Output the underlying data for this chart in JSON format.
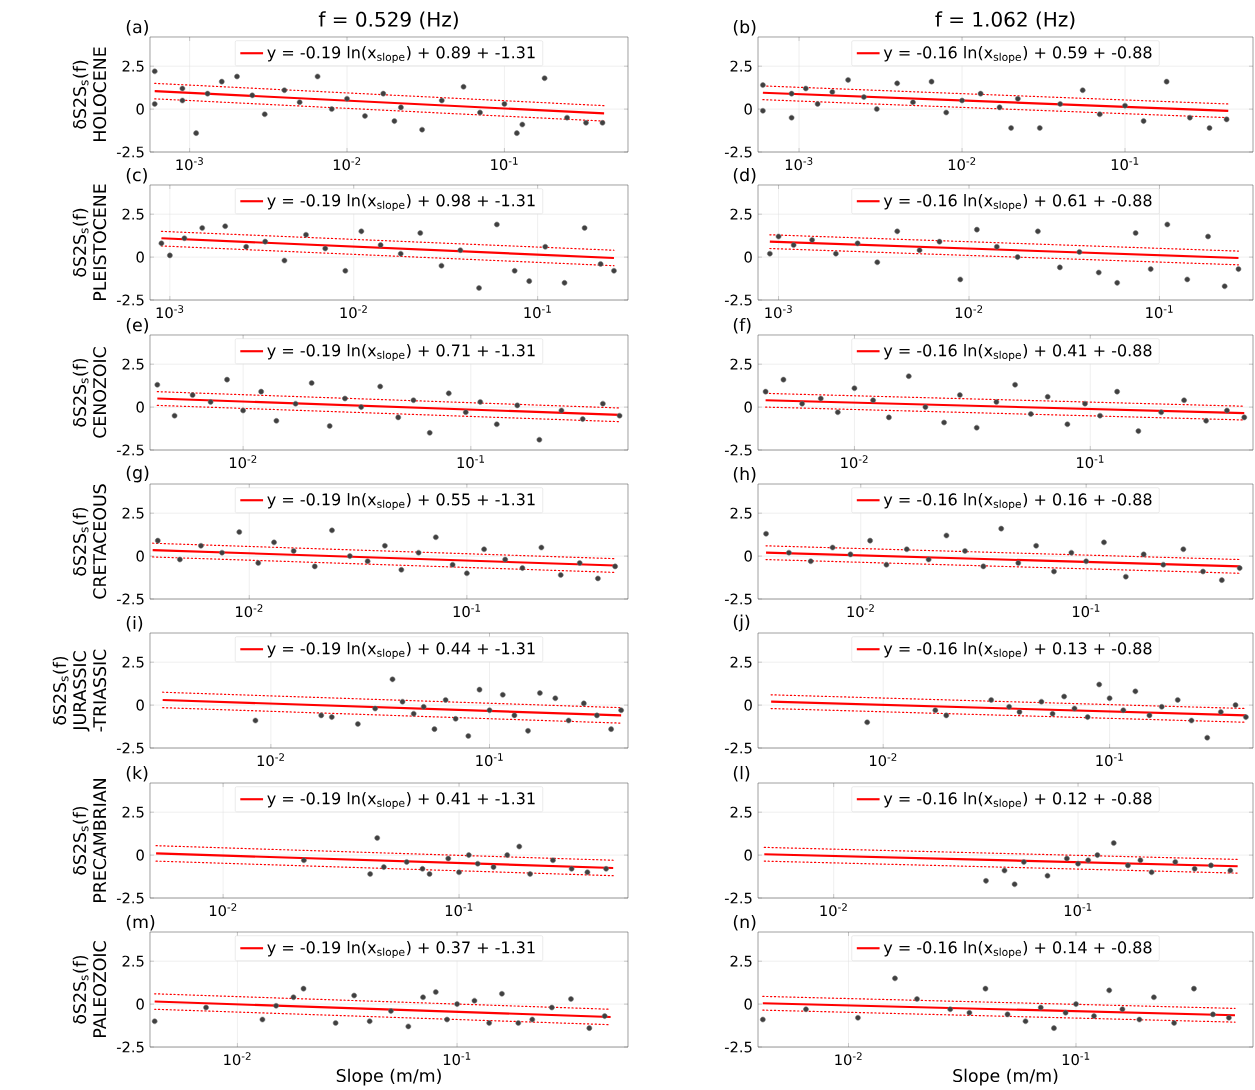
{
  "chart_data": [
    {
      "type": "scatter",
      "title": "f = 0.529 (Hz)",
      "annotations": [
        "(a)"
      ],
      "ylabel": "δS2S$_{s}$(f) HOLOCENE",
      "log": "x",
      "grid": true,
      "legend": "top",
      "xlim": [
        0.00056,
        0.61
      ],
      "ylim": [
        -2.5,
        4.2
      ],
      "xticks": [
        {
          "value": 0.001,
          "label": "10$^{-3}$"
        },
        {
          "value": 0.01,
          "label": "10$^{-2}$"
        },
        {
          "value": 0.1,
          "label": "10$^{-1}$"
        }
      ],
      "yticks": [
        -2.5,
        0,
        2.5
      ],
      "series": [
        {
          "color": "#404040",
          "marker": "circle",
          "x": [
            0.0006,
            0.0006,
            0.0009,
            0.0009,
            0.0011,
            0.0013,
            0.0016,
            0.002,
            0.0025,
            0.003,
            0.004,
            0.005,
            0.0065,
            0.008,
            0.01,
            0.013,
            0.017,
            0.02,
            0.022,
            0.03,
            0.04,
            0.055,
            0.07,
            0.1,
            0.12,
            0.13,
            0.18,
            0.25,
            0.33,
            0.42
          ],
          "values": [
            2.2,
            0.3,
            1.2,
            0.5,
            -1.4,
            0.9,
            1.6,
            1.9,
            0.8,
            -0.3,
            1.1,
            0.4,
            1.9,
            0.0,
            0.6,
            -0.4,
            0.9,
            -0.7,
            0.1,
            -1.2,
            0.5,
            1.3,
            -0.2,
            0.3,
            -1.4,
            -0.9,
            1.8,
            -0.5,
            -0.8,
            -0.8
          ]
        },
        {
          "type": "line",
          "name": "y = -0.19 ln(x$_{slope}$) + 0.89 + -1.31",
          "color": "#ff0000",
          "line_style": "solid",
          "x": [
            0.0006,
            0.43
          ],
          "values": [
            1.05,
            -0.25
          ]
        },
        {
          "type": "line",
          "color": "#ff0000",
          "line_style": "dotted",
          "x": [
            0.0006,
            0.43
          ],
          "values": [
            1.5,
            0.2
          ]
        },
        {
          "type": "line",
          "color": "#ff0000",
          "line_style": "dotted",
          "x": [
            0.0006,
            0.43
          ],
          "values": [
            0.6,
            -0.7
          ]
        }
      ]
    },
    {
      "type": "scatter",
      "title": "f = 1.062 (Hz)",
      "annotations": [
        "(b)"
      ],
      "log": "x",
      "grid": true,
      "legend": "top",
      "xlim": [
        0.00056,
        0.61
      ],
      "ylim": [
        -2.5,
        4.2
      ],
      "xticks": [
        {
          "value": 0.001,
          "label": "10$^{-3}$"
        },
        {
          "value": 0.01,
          "label": "10$^{-2}$"
        },
        {
          "value": 0.1,
          "label": "10$^{-1}$"
        }
      ],
      "yticks": [
        -2.5,
        0,
        2.5
      ],
      "series": [
        {
          "color": "#404040",
          "marker": "circle",
          "x": [
            0.0006,
            0.0006,
            0.0009,
            0.0009,
            0.0011,
            0.0013,
            0.0016,
            0.002,
            0.0025,
            0.003,
            0.004,
            0.005,
            0.0065,
            0.008,
            0.01,
            0.013,
            0.017,
            0.02,
            0.022,
            0.03,
            0.04,
            0.055,
            0.07,
            0.1,
            0.13,
            0.18,
            0.25,
            0.33,
            0.42
          ],
          "values": [
            1.4,
            -0.1,
            0.9,
            -0.5,
            1.2,
            0.3,
            1.0,
            1.7,
            0.7,
            0.0,
            1.5,
            0.4,
            1.6,
            -0.2,
            0.5,
            0.9,
            0.1,
            -1.1,
            0.6,
            -1.1,
            0.3,
            1.1,
            -0.3,
            0.2,
            -0.7,
            1.6,
            -0.5,
            -1.1,
            -0.6
          ]
        },
        {
          "type": "line",
          "name": "y = -0.16 ln(x$_{slope}$) + 0.59 + -0.88",
          "color": "#ff0000",
          "line_style": "solid",
          "x": [
            0.0006,
            0.43
          ],
          "values": [
            0.95,
            -0.1
          ]
        },
        {
          "type": "line",
          "color": "#ff0000",
          "line_style": "dotted",
          "x": [
            0.0006,
            0.43
          ],
          "values": [
            1.35,
            0.3
          ]
        },
        {
          "type": "line",
          "color": "#ff0000",
          "line_style": "dotted",
          "x": [
            0.0006,
            0.43
          ],
          "values": [
            0.55,
            -0.5
          ]
        }
      ]
    },
    {
      "type": "scatter",
      "annotations": [
        "(c)"
      ],
      "ylabel": "δS2S$_{s}$(f) PLEISTOCENE",
      "log": "x",
      "grid": true,
      "legend": "top",
      "xlim": [
        0.00078,
        0.31
      ],
      "ylim": [
        -2.5,
        4.2
      ],
      "xticks": [
        {
          "value": 0.001,
          "label": "10$^{-3}$"
        },
        {
          "value": 0.01,
          "label": "10$^{-2}$"
        },
        {
          "value": 0.1,
          "label": "10$^{-1}$"
        }
      ],
      "yticks": [
        -2.5,
        0,
        2.5
      ],
      "series": [
        {
          "color": "#404040",
          "marker": "circle",
          "x": [
            0.0009,
            0.001,
            0.0012,
            0.0015,
            0.002,
            0.0026,
            0.0033,
            0.0042,
            0.0055,
            0.007,
            0.009,
            0.011,
            0.014,
            0.018,
            0.023,
            0.03,
            0.038,
            0.048,
            0.06,
            0.075,
            0.09,
            0.11,
            0.14,
            0.18,
            0.22,
            0.26
          ],
          "values": [
            0.8,
            0.1,
            1.1,
            1.7,
            1.8,
            0.6,
            0.9,
            -0.2,
            1.3,
            0.5,
            -0.8,
            1.5,
            0.7,
            0.2,
            1.4,
            -0.5,
            0.4,
            -1.8,
            1.9,
            -0.8,
            -1.4,
            0.6,
            -1.5,
            1.7,
            -0.4,
            -0.8
          ]
        },
        {
          "type": "line",
          "name": "y = -0.19 ln(x$_{slope}$) + 0.98 + -1.31",
          "color": "#ff0000",
          "line_style": "solid",
          "x": [
            0.0009,
            0.26
          ],
          "values": [
            1.1,
            -0.05
          ]
        },
        {
          "type": "line",
          "color": "#ff0000",
          "line_style": "dotted",
          "x": [
            0.0009,
            0.26
          ],
          "values": [
            1.5,
            0.4
          ]
        },
        {
          "type": "line",
          "color": "#ff0000",
          "line_style": "dotted",
          "x": [
            0.0009,
            0.26
          ],
          "values": [
            0.65,
            -0.5
          ]
        }
      ]
    },
    {
      "type": "scatter",
      "annotations": [
        "(d)"
      ],
      "log": "x",
      "grid": true,
      "legend": "top",
      "xlim": [
        0.00078,
        0.31
      ],
      "ylim": [
        -2.5,
        4.2
      ],
      "xticks": [
        {
          "value": 0.001,
          "label": "10$^{-3}$"
        },
        {
          "value": 0.01,
          "label": "10$^{-2}$"
        },
        {
          "value": 0.1,
          "label": "10$^{-1}$"
        }
      ],
      "yticks": [
        -2.5,
        0,
        2.5
      ],
      "series": [
        {
          "color": "#404040",
          "marker": "circle",
          "x": [
            0.0009,
            0.001,
            0.0012,
            0.0015,
            0.002,
            0.0026,
            0.0033,
            0.0042,
            0.0055,
            0.007,
            0.009,
            0.011,
            0.014,
            0.018,
            0.023,
            0.03,
            0.038,
            0.048,
            0.06,
            0.075,
            0.09,
            0.11,
            0.14,
            0.18,
            0.22,
            0.26
          ],
          "values": [
            0.2,
            1.2,
            0.7,
            1.0,
            0.2,
            0.8,
            -0.3,
            1.5,
            0.4,
            0.9,
            -1.3,
            1.6,
            0.6,
            0.0,
            1.5,
            -0.6,
            0.3,
            -0.9,
            -1.5,
            1.4,
            -0.7,
            1.9,
            -1.3,
            1.2,
            -1.7,
            -0.7
          ]
        },
        {
          "type": "line",
          "name": "y = -0.16 ln(x$_{slope}$) + 0.61 + -0.88",
          "color": "#ff0000",
          "line_style": "solid",
          "x": [
            0.0009,
            0.26
          ],
          "values": [
            0.9,
            -0.05
          ]
        },
        {
          "type": "line",
          "color": "#ff0000",
          "line_style": "dotted",
          "x": [
            0.0009,
            0.26
          ],
          "values": [
            1.3,
            0.35
          ]
        },
        {
          "type": "line",
          "color": "#ff0000",
          "line_style": "dotted",
          "x": [
            0.0009,
            0.26
          ],
          "values": [
            0.5,
            -0.45
          ]
        }
      ]
    },
    {
      "type": "scatter",
      "annotations": [
        "(e)"
      ],
      "ylabel": "δS2S$_{s}$(f) CENOZOIC",
      "log": "x",
      "grid": true,
      "legend": "top",
      "xlim": [
        0.0039,
        0.49
      ],
      "ylim": [
        -2.5,
        4.2
      ],
      "xticks": [
        {
          "value": 0.01,
          "label": "10$^{-2}$"
        },
        {
          "value": 0.1,
          "label": "10$^{-1}$"
        }
      ],
      "yticks": [
        -2.5,
        0,
        2.5
      ],
      "series": [
        {
          "color": "#404040",
          "marker": "circle",
          "x": [
            0.0042,
            0.005,
            0.006,
            0.0072,
            0.0085,
            0.01,
            0.012,
            0.014,
            0.017,
            0.02,
            0.024,
            0.028,
            0.033,
            0.04,
            0.048,
            0.056,
            0.066,
            0.08,
            0.095,
            0.11,
            0.13,
            0.16,
            0.2,
            0.25,
            0.31,
            0.38,
            0.45
          ],
          "values": [
            1.3,
            -0.5,
            0.7,
            0.3,
            1.6,
            -0.2,
            0.9,
            -0.8,
            0.2,
            1.4,
            -1.1,
            0.5,
            0.0,
            1.2,
            -0.6,
            0.4,
            -1.5,
            0.8,
            -0.3,
            0.3,
            -1.0,
            0.1,
            -1.9,
            -0.2,
            -0.7,
            0.2,
            -0.5
          ]
        },
        {
          "type": "line",
          "name": "y = -0.19 ln(x$_{slope}$) + 0.71 + -1.31",
          "color": "#ff0000",
          "line_style": "solid",
          "x": [
            0.0042,
            0.45
          ],
          "values": [
            0.5,
            -0.45
          ]
        },
        {
          "type": "line",
          "color": "#ff0000",
          "line_style": "dotted",
          "x": [
            0.0042,
            0.45
          ],
          "values": [
            0.9,
            -0.05
          ]
        },
        {
          "type": "line",
          "color": "#ff0000",
          "line_style": "dotted",
          "x": [
            0.0042,
            0.45
          ],
          "values": [
            0.1,
            -0.85
          ]
        }
      ]
    },
    {
      "type": "scatter",
      "annotations": [
        "(f)"
      ],
      "log": "x",
      "grid": true,
      "legend": "top",
      "xlim": [
        0.0039,
        0.49
      ],
      "ylim": [
        -2.5,
        4.2
      ],
      "xticks": [
        {
          "value": 0.01,
          "label": "10$^{-2}$"
        },
        {
          "value": 0.1,
          "label": "10$^{-1}$"
        }
      ],
      "yticks": [
        -2.5,
        0,
        2.5
      ],
      "series": [
        {
          "color": "#404040",
          "marker": "circle",
          "x": [
            0.0042,
            0.005,
            0.006,
            0.0072,
            0.0085,
            0.01,
            0.012,
            0.014,
            0.017,
            0.02,
            0.024,
            0.028,
            0.033,
            0.04,
            0.048,
            0.056,
            0.066,
            0.08,
            0.095,
            0.11,
            0.13,
            0.16,
            0.2,
            0.25,
            0.31,
            0.38,
            0.45
          ],
          "values": [
            0.9,
            1.6,
            0.2,
            0.5,
            -0.3,
            1.1,
            0.4,
            -0.6,
            1.8,
            0.0,
            -0.9,
            0.7,
            -1.2,
            0.3,
            1.3,
            -0.4,
            0.6,
            -1.0,
            0.2,
            -0.5,
            0.9,
            -1.4,
            -0.3,
            0.4,
            -0.8,
            -0.2,
            -0.6
          ]
        },
        {
          "type": "line",
          "name": "y = -0.16 ln(x$_{slope}$) + 0.41 + -0.88",
          "color": "#ff0000",
          "line_style": "solid",
          "x": [
            0.0042,
            0.45
          ],
          "values": [
            0.4,
            -0.35
          ]
        },
        {
          "type": "line",
          "color": "#ff0000",
          "line_style": "dotted",
          "x": [
            0.0042,
            0.45
          ],
          "values": [
            0.8,
            0.05
          ]
        },
        {
          "type": "line",
          "color": "#ff0000",
          "line_style": "dotted",
          "x": [
            0.0042,
            0.45
          ],
          "values": [
            0.0,
            -0.75
          ]
        }
      ]
    },
    {
      "type": "scatter",
      "annotations": [
        "(g)"
      ],
      "ylabel": "δS2S$_{s}$(f) CRETACEOUS",
      "log": "x",
      "grid": true,
      "legend": "top",
      "xlim": [
        0.0035,
        0.55
      ],
      "ylim": [
        -2.5,
        4.2
      ],
      "xticks": [
        {
          "value": 0.01,
          "label": "10$^{-2}$"
        },
        {
          "value": 0.1,
          "label": "10$^{-1}$"
        }
      ],
      "yticks": [
        -2.5,
        0,
        2.5
      ],
      "series": [
        {
          "color": "#404040",
          "marker": "circle",
          "x": [
            0.0038,
            0.0048,
            0.006,
            0.0075,
            0.009,
            0.011,
            0.013,
            0.016,
            0.02,
            0.024,
            0.029,
            0.035,
            0.042,
            0.05,
            0.06,
            0.072,
            0.086,
            0.1,
            0.12,
            0.15,
            0.18,
            0.22,
            0.27,
            0.33,
            0.4,
            0.48
          ],
          "values": [
            0.9,
            -0.2,
            0.6,
            0.2,
            1.4,
            -0.4,
            0.8,
            0.3,
            -0.6,
            1.5,
            0.0,
            -0.3,
            0.6,
            -0.8,
            0.2,
            1.1,
            -0.5,
            -1.0,
            0.4,
            -0.2,
            -0.7,
            0.5,
            -1.1,
            -0.4,
            -1.3,
            -0.6
          ]
        },
        {
          "type": "line",
          "name": "y = -0.19 ln(x$_{slope}$) + 0.55 + -1.31",
          "color": "#ff0000",
          "line_style": "solid",
          "x": [
            0.0036,
            0.48
          ],
          "values": [
            0.35,
            -0.55
          ]
        },
        {
          "type": "line",
          "color": "#ff0000",
          "line_style": "dotted",
          "x": [
            0.0036,
            0.48
          ],
          "values": [
            0.75,
            -0.15
          ]
        },
        {
          "type": "line",
          "color": "#ff0000",
          "line_style": "dotted",
          "x": [
            0.0036,
            0.48
          ],
          "values": [
            -0.05,
            -0.95
          ]
        }
      ]
    },
    {
      "type": "scatter",
      "annotations": [
        "(h)"
      ],
      "log": "x",
      "grid": true,
      "legend": "top",
      "xlim": [
        0.0035,
        0.55
      ],
      "ylim": [
        -2.5,
        4.2
      ],
      "xticks": [
        {
          "value": 0.01,
          "label": "10$^{-2}$"
        },
        {
          "value": 0.1,
          "label": "10$^{-1}$"
        }
      ],
      "yticks": [
        -2.5,
        0,
        2.5
      ],
      "series": [
        {
          "color": "#404040",
          "marker": "circle",
          "x": [
            0.0038,
            0.0048,
            0.006,
            0.0075,
            0.009,
            0.011,
            0.013,
            0.016,
            0.02,
            0.024,
            0.029,
            0.035,
            0.042,
            0.05,
            0.06,
            0.072,
            0.086,
            0.1,
            0.12,
            0.15,
            0.18,
            0.22,
            0.27,
            0.33,
            0.4,
            0.48
          ],
          "values": [
            1.3,
            0.2,
            -0.3,
            0.5,
            0.1,
            0.9,
            -0.5,
            0.4,
            -0.2,
            1.2,
            0.3,
            -0.6,
            1.6,
            -0.4,
            0.6,
            -0.9,
            0.2,
            -0.3,
            0.8,
            -1.2,
            0.1,
            -0.5,
            0.4,
            -0.9,
            -1.4,
            -0.7
          ]
        },
        {
          "type": "line",
          "name": "y = -0.16 ln(x$_{slope}$) + 0.16 + -0.88",
          "color": "#ff0000",
          "line_style": "solid",
          "x": [
            0.0038,
            0.48
          ],
          "values": [
            0.2,
            -0.6
          ]
        },
        {
          "type": "line",
          "color": "#ff0000",
          "line_style": "dotted",
          "x": [
            0.0038,
            0.48
          ],
          "values": [
            0.6,
            -0.2
          ]
        },
        {
          "type": "line",
          "color": "#ff0000",
          "line_style": "dotted",
          "x": [
            0.0038,
            0.48
          ],
          "values": [
            -0.2,
            -1.0
          ]
        }
      ]
    },
    {
      "type": "scatter",
      "annotations": [
        "(i)"
      ],
      "ylabel": "δS2S$_{s}$(f) JURASSIC -TRIASSIC",
      "log": "x",
      "grid": true,
      "legend": "top",
      "xlim": [
        0.0028,
        0.43
      ],
      "ylim": [
        -2.5,
        4.2
      ],
      "xticks": [
        {
          "value": 0.01,
          "label": "10$^{-2}$"
        },
        {
          "value": 0.1,
          "label": "10$^{-1}$"
        }
      ],
      "yticks": [
        -2.5,
        0,
        2.5
      ],
      "series": [
        {
          "color": "#404040",
          "marker": "circle",
          "x": [
            0.0085,
            0.017,
            0.019,
            0.025,
            0.03,
            0.036,
            0.04,
            0.045,
            0.05,
            0.056,
            0.063,
            0.07,
            0.08,
            0.09,
            0.1,
            0.115,
            0.13,
            0.15,
            0.17,
            0.2,
            0.23,
            0.27,
            0.31,
            0.36,
            0.4
          ],
          "values": [
            -0.9,
            -0.6,
            -0.7,
            -1.1,
            -0.2,
            1.5,
            0.2,
            -0.5,
            -0.1,
            -1.4,
            0.3,
            -0.8,
            -1.8,
            0.9,
            -0.3,
            0.6,
            -0.6,
            -1.5,
            0.7,
            0.4,
            -0.9,
            0.1,
            -0.6,
            -1.4,
            -0.3
          ]
        },
        {
          "type": "line",
          "name": "y = -0.19 ln(x$_{slope}$) + 0.44 + -1.31",
          "color": "#ff0000",
          "line_style": "solid",
          "x": [
            0.0032,
            0.4
          ],
          "values": [
            0.3,
            -0.6
          ]
        },
        {
          "type": "line",
          "color": "#ff0000",
          "line_style": "dotted",
          "x": [
            0.0032,
            0.4
          ],
          "values": [
            0.75,
            -0.15
          ]
        },
        {
          "type": "line",
          "color": "#ff0000",
          "line_style": "dotted",
          "x": [
            0.0032,
            0.4
          ],
          "values": [
            -0.15,
            -1.05
          ]
        }
      ]
    },
    {
      "type": "scatter",
      "annotations": [
        "(j)"
      ],
      "log": "x",
      "grid": true,
      "legend": "top",
      "xlim": [
        0.0028,
        0.43
      ],
      "ylim": [
        -2.5,
        4.2
      ],
      "xticks": [
        {
          "value": 0.01,
          "label": "10$^{-2}$"
        },
        {
          "value": 0.1,
          "label": "10$^{-1}$"
        }
      ],
      "yticks": [
        -2.5,
        0,
        2.5
      ],
      "series": [
        {
          "color": "#404040",
          "marker": "circle",
          "x": [
            0.0085,
            0.017,
            0.019,
            0.03,
            0.036,
            0.04,
            0.05,
            0.056,
            0.063,
            0.07,
            0.08,
            0.09,
            0.1,
            0.115,
            0.13,
            0.15,
            0.17,
            0.2,
            0.23,
            0.27,
            0.31,
            0.36,
            0.4
          ],
          "values": [
            -1.0,
            -0.3,
            -0.6,
            0.3,
            -0.1,
            -0.4,
            0.2,
            -0.5,
            0.5,
            -0.2,
            -0.7,
            1.2,
            0.4,
            -0.3,
            0.8,
            -0.6,
            -0.1,
            0.3,
            -0.9,
            -1.9,
            -0.4,
            0.0,
            -0.7
          ]
        },
        {
          "type": "line",
          "name": "y = -0.16 ln(x$_{slope}$) + 0.13 + -0.88",
          "color": "#ff0000",
          "line_style": "solid",
          "x": [
            0.0032,
            0.4
          ],
          "values": [
            0.2,
            -0.6
          ]
        },
        {
          "type": "line",
          "color": "#ff0000",
          "line_style": "dotted",
          "x": [
            0.0032,
            0.4
          ],
          "values": [
            0.6,
            -0.2
          ]
        },
        {
          "type": "line",
          "color": "#ff0000",
          "line_style": "dotted",
          "x": [
            0.0032,
            0.4
          ],
          "values": [
            -0.2,
            -1.0
          ]
        }
      ]
    },
    {
      "type": "scatter",
      "annotations": [
        "(k)"
      ],
      "ylabel": "δS2S$_{s}$(f) PRECAMBRIAN",
      "log": "x",
      "grid": true,
      "legend": "top",
      "xlim": [
        0.0049,
        0.52
      ],
      "ylim": [
        -2.5,
        4.2
      ],
      "xticks": [
        {
          "value": 0.01,
          "label": "10$^{-2}$"
        },
        {
          "value": 0.1,
          "label": "10$^{-1}$"
        }
      ],
      "yticks": [
        -2.5,
        0,
        2.5
      ],
      "series": [
        {
          "color": "#404040",
          "marker": "circle",
          "x": [
            0.022,
            0.042,
            0.045,
            0.048,
            0.06,
            0.07,
            0.075,
            0.09,
            0.1,
            0.11,
            0.12,
            0.14,
            0.16,
            0.18,
            0.2,
            0.25,
            0.3,
            0.35,
            0.42
          ],
          "values": [
            -0.3,
            -1.1,
            1.0,
            -0.7,
            -0.4,
            -0.8,
            -1.1,
            -0.2,
            -1.0,
            0.0,
            -0.5,
            -0.7,
            0.0,
            0.5,
            -1.1,
            -0.3,
            -0.8,
            -1.0,
            -0.8
          ]
        },
        {
          "type": "line",
          "name": "y = -0.19 ln(x$_{slope}$) + 0.41 + -1.31",
          "color": "#ff0000",
          "line_style": "solid",
          "x": [
            0.0052,
            0.45
          ],
          "values": [
            0.1,
            -0.75
          ]
        },
        {
          "type": "line",
          "color": "#ff0000",
          "line_style": "dotted",
          "x": [
            0.0052,
            0.45
          ],
          "values": [
            0.55,
            -0.3
          ]
        },
        {
          "type": "line",
          "color": "#ff0000",
          "line_style": "dotted",
          "x": [
            0.0052,
            0.45
          ],
          "values": [
            -0.35,
            -1.2
          ]
        }
      ]
    },
    {
      "type": "scatter",
      "annotations": [
        "(l)"
      ],
      "log": "x",
      "grid": true,
      "legend": "top",
      "xlim": [
        0.0049,
        0.52
      ],
      "ylim": [
        -2.5,
        4.2
      ],
      "xticks": [
        {
          "value": 0.01,
          "label": "10$^{-2}$"
        },
        {
          "value": 0.1,
          "label": "10$^{-1}$"
        }
      ],
      "yticks": [
        -2.5,
        0,
        2.5
      ],
      "series": [
        {
          "color": "#404040",
          "marker": "circle",
          "x": [
            0.042,
            0.05,
            0.055,
            0.06,
            0.075,
            0.09,
            0.1,
            0.11,
            0.12,
            0.14,
            0.16,
            0.18,
            0.2,
            0.25,
            0.3,
            0.35,
            0.42
          ],
          "values": [
            -1.5,
            -0.9,
            -1.7,
            -0.4,
            -1.2,
            -0.2,
            -0.5,
            -0.3,
            0.0,
            0.7,
            -0.6,
            -0.3,
            -1.0,
            -0.4,
            -0.8,
            -0.6,
            -0.9
          ]
        },
        {
          "type": "line",
          "name": "y = -0.16 ln(x$_{slope}$) + 0.12 + -0.88",
          "color": "#ff0000",
          "line_style": "solid",
          "x": [
            0.0052,
            0.45
          ],
          "values": [
            0.05,
            -0.65
          ]
        },
        {
          "type": "line",
          "color": "#ff0000",
          "line_style": "dotted",
          "x": [
            0.0052,
            0.45
          ],
          "values": [
            0.45,
            -0.25
          ]
        },
        {
          "type": "line",
          "color": "#ff0000",
          "line_style": "dotted",
          "x": [
            0.0052,
            0.45
          ],
          "values": [
            -0.35,
            -1.05
          ]
        }
      ]
    },
    {
      "type": "scatter",
      "annotations": [
        "(m)"
      ],
      "ylabel": "δS2S$_{s}$(f) PALEOZOIC",
      "xlabel": "Slope (m/m)",
      "log": "x",
      "grid": true,
      "legend": "top",
      "xlim": [
        0.004,
        0.6
      ],
      "ylim": [
        -2.5,
        4.2
      ],
      "xticks": [
        {
          "value": 0.01,
          "label": "10$^{-2}$"
        },
        {
          "value": 0.1,
          "label": "10$^{-1}$"
        }
      ],
      "yticks": [
        -2.5,
        0,
        2.5
      ],
      "series": [
        {
          "color": "#404040",
          "marker": "circle",
          "x": [
            0.0042,
            0.0072,
            0.013,
            0.015,
            0.018,
            0.02,
            0.028,
            0.034,
            0.04,
            0.05,
            0.06,
            0.07,
            0.08,
            0.09,
            0.1,
            0.12,
            0.14,
            0.16,
            0.19,
            0.22,
            0.27,
            0.33,
            0.4,
            0.47
          ],
          "values": [
            -1.0,
            -0.2,
            -0.9,
            -0.1,
            0.4,
            0.9,
            -1.1,
            0.5,
            -1.0,
            -0.4,
            -1.3,
            0.4,
            0.7,
            -0.9,
            0.0,
            0.2,
            -1.1,
            0.6,
            -1.1,
            -0.9,
            -0.2,
            0.3,
            -1.4,
            -0.7
          ]
        },
        {
          "type": "line",
          "name": "y = -0.19 ln(x$_{slope}$) + 0.37 + -1.31",
          "color": "#ff0000",
          "line_style": "solid",
          "x": [
            0.0042,
            0.5
          ],
          "values": [
            0.15,
            -0.75
          ]
        },
        {
          "type": "line",
          "color": "#ff0000",
          "line_style": "dotted",
          "x": [
            0.0042,
            0.5
          ],
          "values": [
            0.6,
            -0.3
          ]
        },
        {
          "type": "line",
          "color": "#ff0000",
          "line_style": "dotted",
          "x": [
            0.0042,
            0.5
          ],
          "values": [
            -0.3,
            -1.2
          ]
        }
      ]
    },
    {
      "type": "scatter",
      "annotations": [
        "(n)"
      ],
      "xlabel": "Slope (m/m)",
      "log": "x",
      "grid": true,
      "legend": "top",
      "xlim": [
        0.004,
        0.6
      ],
      "ylim": [
        -2.5,
        4.2
      ],
      "xticks": [
        {
          "value": 0.01,
          "label": "10$^{-2}$"
        },
        {
          "value": 0.1,
          "label": "10$^{-1}$"
        }
      ],
      "yticks": [
        -2.5,
        0,
        2.5
      ],
      "series": [
        {
          "color": "#404040",
          "marker": "circle",
          "x": [
            0.0042,
            0.0065,
            0.011,
            0.016,
            0.02,
            0.028,
            0.034,
            0.04,
            0.05,
            0.06,
            0.07,
            0.08,
            0.09,
            0.1,
            0.12,
            0.14,
            0.16,
            0.19,
            0.22,
            0.27,
            0.33,
            0.4,
            0.47
          ],
          "values": [
            -0.9,
            -0.3,
            -0.8,
            1.5,
            0.3,
            -0.3,
            -0.5,
            0.9,
            -0.6,
            -1.0,
            -0.2,
            -1.4,
            -0.5,
            0.0,
            -0.7,
            0.8,
            -0.3,
            -0.9,
            0.4,
            -1.1,
            0.9,
            -0.6,
            -0.8
          ]
        },
        {
          "type": "line",
          "name": "y = -0.16 ln(x$_{slope}$) + 0.14 + -0.88",
          "color": "#ff0000",
          "line_style": "solid",
          "x": [
            0.0042,
            0.5
          ],
          "values": [
            0.05,
            -0.65
          ]
        },
        {
          "type": "line",
          "color": "#ff0000",
          "line_style": "dotted",
          "x": [
            0.0042,
            0.5
          ],
          "values": [
            0.45,
            -0.25
          ]
        },
        {
          "type": "line",
          "color": "#ff0000",
          "line_style": "dotted",
          "x": [
            0.0042,
            0.5
          ],
          "values": [
            -0.35,
            -1.05
          ]
        }
      ]
    }
  ]
}
